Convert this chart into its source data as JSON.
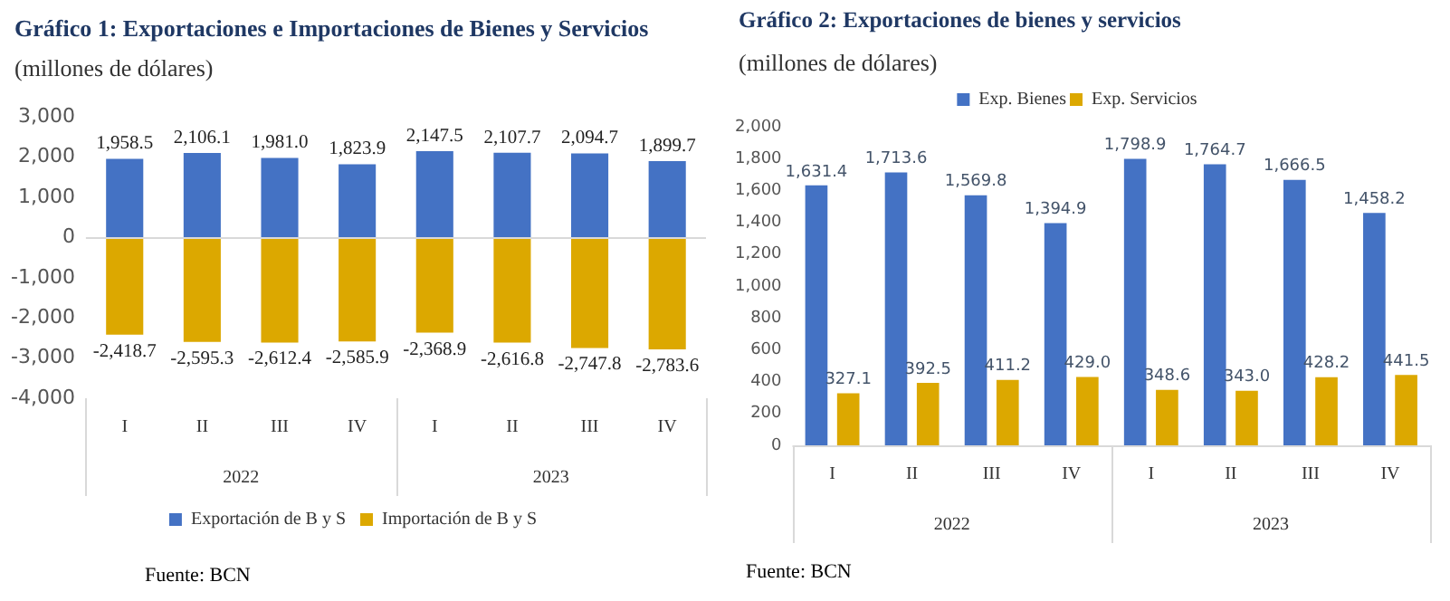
{
  "chart_data": [
    {
      "type": "bar",
      "title": "Gráfico 1:  Exportaciones e Importaciones de Bienes y Servicios",
      "subtitle": "(millones de dólares)",
      "categories": [
        "I",
        "II",
        "III",
        "IV",
        "I",
        "II",
        "III",
        "IV"
      ],
      "series": [
        {
          "name": "Exportación de B y S",
          "color": "#4472c4",
          "values": [
            1958.5,
            2106.1,
            1981.0,
            1823.9,
            2147.5,
            2107.7,
            2094.7,
            1899.7
          ],
          "value_labels": [
            "1,958.5",
            "2,106.1",
            "1,981.0",
            "1,823.9",
            "2,147.5",
            "2,107.7",
            "2,094.7",
            "1,899.7"
          ]
        },
        {
          "name": "Importación de B y S",
          "color": "#dca800",
          "values": [
            -2418.7,
            -2595.3,
            -2612.4,
            -2585.9,
            -2368.9,
            -2616.8,
            -2747.8,
            -2783.6
          ],
          "value_labels": [
            "-2,418.7",
            "-2,595.3",
            "-2,612.4",
            "-2,585.9",
            "-2,368.9",
            "-2,616.8",
            "-2,747.8",
            "-2,783.6"
          ]
        }
      ],
      "stacked": true,
      "ylim": [
        -4000,
        3000
      ],
      "yticks": [
        {
          "value": -4000,
          "label": "-4,000"
        },
        {
          "value": -3000,
          "label": "-3,000"
        },
        {
          "value": -2000,
          "label": "-2,000"
        },
        {
          "value": -1000,
          "label": "-1,000"
        },
        0,
        {
          "value": 1000,
          "label": "1,000"
        },
        {
          "value": 2000,
          "label": "2,000"
        },
        {
          "value": 3000,
          "label": "3,000"
        }
      ],
      "legend": "bottom",
      "annotations": [
        "2022",
        "2023",
        "Fuente: BCN"
      ]
    },
    {
      "type": "bar",
      "title": "Gráfico 2: Exportaciones de bienes y servicios",
      "subtitle": "(millones de dólares)",
      "categories": [
        "I",
        "II",
        "III",
        "IV",
        "I",
        "II",
        "III",
        "IV"
      ],
      "series": [
        {
          "name": "Exp. Bienes",
          "color": "#4472c4",
          "values": [
            1631.4,
            1713.6,
            1569.8,
            1394.9,
            1798.9,
            1764.7,
            1666.5,
            1458.2
          ],
          "value_labels": [
            "1,631.4",
            "1,713.6",
            "1,569.8",
            "1,394.9",
            "1,798.9",
            "1,764.7",
            "1,666.5",
            "1,458.2"
          ]
        },
        {
          "name": "Exp. Servicios",
          "color": "#dca800",
          "values": [
            327.1,
            392.5,
            411.2,
            429.0,
            348.6,
            343.0,
            428.2,
            441.5
          ],
          "value_labels": [
            "327.1",
            "392.5",
            "411.2",
            "429.0",
            "348.6",
            "343.0",
            "428.2",
            "441.5"
          ]
        }
      ],
      "ylim": [
        0,
        2000
      ],
      "yticks": [
        0,
        200,
        400,
        600,
        800,
        {
          "value": 1000,
          "label": "1,000"
        },
        {
          "value": 1200,
          "label": "1,200"
        },
        {
          "value": 1400,
          "label": "1,400"
        },
        {
          "value": 1600,
          "label": "1,600"
        },
        {
          "value": 1800,
          "label": "1,800"
        },
        {
          "value": 2000,
          "label": "2,000"
        }
      ],
      "legend": "top",
      "annotations": [
        "2022",
        "2023",
        "Fuente: BCN"
      ]
    }
  ]
}
